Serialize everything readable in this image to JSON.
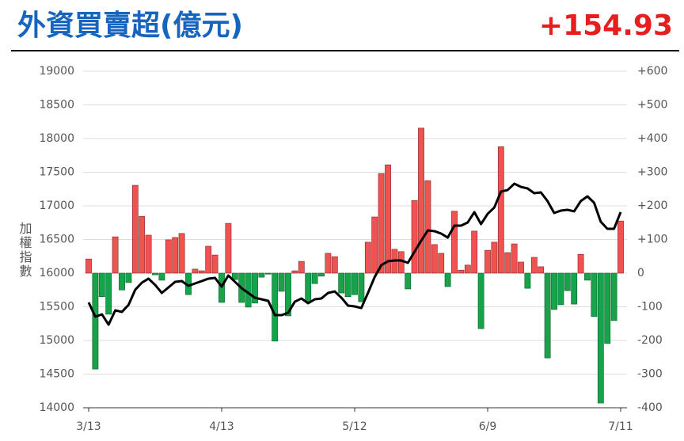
{
  "chart_data": {
    "type": "combo",
    "title": "外資買賣超(億元)",
    "headline": "+154.93",
    "y_label": "加權指數",
    "categories": [
      "3/13",
      null,
      null,
      null,
      null,
      null,
      null,
      null,
      null,
      null,
      null,
      null,
      null,
      null,
      null,
      null,
      null,
      null,
      null,
      null,
      "4/13",
      null,
      null,
      null,
      null,
      null,
      null,
      null,
      null,
      null,
      null,
      null,
      null,
      null,
      null,
      null,
      null,
      null,
      null,
      null,
      "5/12",
      null,
      null,
      null,
      null,
      null,
      null,
      null,
      null,
      null,
      null,
      null,
      null,
      null,
      null,
      null,
      null,
      null,
      null,
      null,
      "6/9",
      null,
      null,
      null,
      null,
      null,
      null,
      null,
      null,
      null,
      null,
      null,
      null,
      null,
      null,
      null,
      null,
      null,
      null,
      null,
      "7/11"
    ],
    "ylim": [
      14000,
      19000
    ],
    "yticks": [
      14000,
      14500,
      15000,
      15500,
      16000,
      16500,
      17000,
      17500,
      18000,
      18500,
      19000
    ],
    "y2lim": [
      -400,
      600
    ],
    "y2ticks": [
      -400,
      -300,
      -200,
      -100,
      0,
      {
        "value": 100,
        "label": "+100"
      },
      {
        "value": 200,
        "label": "+200"
      },
      {
        "value": 300,
        "label": "+300"
      },
      {
        "value": 400,
        "label": "+400"
      },
      {
        "value": 500,
        "label": "+500"
      },
      {
        "value": 600,
        "label": "+600"
      }
    ],
    "grid": true,
    "series": [
      {
        "type": "bar",
        "axis": "y2",
        "up_color": "#ef5350",
        "down_color": "#16a34a",
        "values": [
          42,
          -285,
          -70,
          -122,
          108,
          -50,
          -28,
          261,
          169,
          113,
          -5,
          -21,
          99,
          106,
          118,
          -64,
          12,
          7,
          80,
          54,
          -87,
          148,
          -19,
          -87,
          -101,
          -89,
          -12,
          -3,
          -202,
          -54,
          -127,
          7,
          35,
          -87,
          -31,
          -9,
          59,
          49,
          -59,
          -70,
          -64,
          -85,
          92,
          167,
          296,
          322,
          71,
          64,
          -47,
          216,
          431,
          275,
          85,
          59,
          -40,
          184,
          9,
          24,
          125,
          -165,
          68,
          92,
          376,
          61,
          87,
          33,
          -45,
          47,
          19,
          -252,
          -108,
          -94,
          -52,
          -92,
          56,
          -21,
          -129,
          -386,
          -209,
          -141,
          154.93
        ]
      },
      {
        "type": "line",
        "axis": "y",
        "color": "#000000",
        "values": [
          15565,
          15353,
          15388,
          15235,
          15447,
          15424,
          15529,
          15753,
          15859,
          15918,
          15824,
          15706,
          15788,
          15871,
          15882,
          15812,
          15847,
          15882,
          15918,
          15929,
          15800,
          15965,
          15871,
          15776,
          15706,
          15635,
          15612,
          15588,
          15376,
          15376,
          15412,
          15576,
          15624,
          15553,
          15612,
          15624,
          15706,
          15729,
          15635,
          15518,
          15506,
          15482,
          15706,
          15941,
          16118,
          16176,
          16188,
          16188,
          16153,
          16318,
          16482,
          16635,
          16624,
          16588,
          16529,
          16706,
          16706,
          16753,
          16906,
          16729,
          16882,
          16976,
          17212,
          17235,
          17329,
          17282,
          17259,
          17188,
          17200,
          17071,
          16894,
          16929,
          16941,
          16918,
          17071,
          17141,
          17047,
          16765,
          16659,
          16659,
          16906
        ]
      }
    ]
  }
}
